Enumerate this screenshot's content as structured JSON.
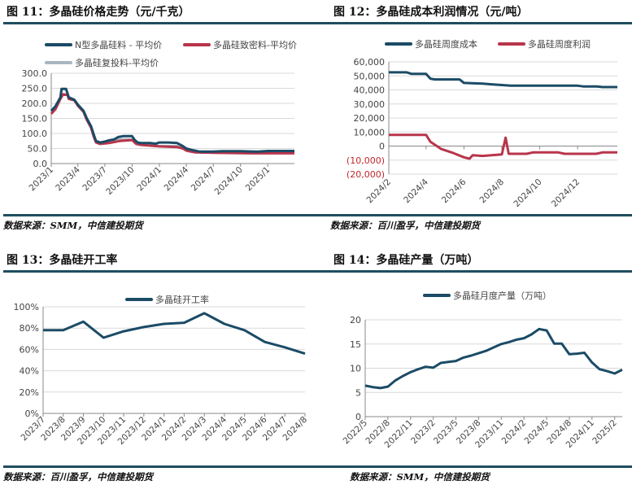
{
  "panels": [
    {
      "title": "图 11：多晶硅价格走势（元/千克）",
      "source": "数据来源：SMM，中信建投期货"
    },
    {
      "title": "图 12：多晶硅成本利润情况（元/吨）",
      "source": "数据来源：百川盈孚，中信建投期货"
    },
    {
      "title": "图 13：多晶硅开工率",
      "source": "数据来源：百川盈孚，中信建投期货"
    },
    {
      "title": "图 14：多晶硅产量（万吨）",
      "source": "数据来源：SMM，中信建投期货"
    }
  ],
  "colors": {
    "dark": "#1b4b66",
    "red": "#b8354b",
    "gray": "#a7b6c0",
    "rule": "#1f4e5f",
    "grid": "#d9d9d9"
  },
  "chart_data": [
    {
      "type": "line",
      "title": "",
      "x_type": "date",
      "xlim": [
        "2023-01-01",
        "2025-04-01"
      ],
      "ylim": [
        0,
        300
      ],
      "y_ticks": [
        0,
        50,
        100,
        150,
        200,
        250,
        300
      ],
      "y_tick_labels": [
        "0.0",
        "50.0",
        "100.0",
        "150.0",
        "200.0",
        "250.0",
        "300.0"
      ],
      "x_ticks": [
        "2023-01-01",
        "2023-04-01",
        "2023-07-01",
        "2023-10-01",
        "2024-01-01",
        "2024-04-01",
        "2024-07-01",
        "2024-10-01",
        "2025-01-01"
      ],
      "x_tick_labels": [
        "2023/1",
        "2023/4",
        "2023/7",
        "2023/10",
        "2024/1",
        "2024/4",
        "2024/7",
        "2024/10",
        "2025/1"
      ],
      "grid": true,
      "legend": "top",
      "series": [
        {
          "name": "N型多晶硅料 - 平均价",
          "color": "#1b4b66",
          "x": [
            "2023-01-01",
            "2023-01-15",
            "2023-02-01",
            "2023-02-05",
            "2023-02-20",
            "2023-03-01",
            "2023-03-20",
            "2023-04-01",
            "2023-04-20",
            "2023-05-01",
            "2023-05-15",
            "2023-05-25",
            "2023-06-01",
            "2023-06-15",
            "2023-07-01",
            "2023-07-15",
            "2023-08-01",
            "2023-08-15",
            "2023-09-01",
            "2023-10-01",
            "2023-10-10",
            "2023-10-20",
            "2023-11-01",
            "2023-12-01",
            "2023-12-20",
            "2024-01-01",
            "2024-02-01",
            "2024-03-01",
            "2024-03-20",
            "2024-04-01",
            "2024-04-20",
            "2024-05-15",
            "2024-06-01",
            "2024-07-01",
            "2024-08-01",
            "2024-10-01",
            "2024-11-15",
            "2024-12-01",
            "2025-01-01",
            "2025-04-01"
          ],
          "y": [
            175,
            190,
            220,
            248,
            248,
            220,
            212,
            195,
            175,
            150,
            125,
            95,
            75,
            70,
            73,
            77,
            80,
            88,
            91,
            91,
            78,
            70,
            68,
            68,
            66,
            70,
            70,
            68,
            58,
            50,
            45,
            40,
            40,
            40,
            41,
            41,
            40,
            40,
            42,
            42
          ]
        },
        {
          "name": "多晶硅致密料-平均价",
          "color": "#b8354b",
          "x": [
            "2023-01-01",
            "2023-01-15",
            "2023-02-01",
            "2023-02-10",
            "2023-02-25",
            "2023-03-01",
            "2023-03-20",
            "2023-04-01",
            "2023-04-20",
            "2023-05-01",
            "2023-05-15",
            "2023-05-25",
            "2023-06-01",
            "2023-06-15",
            "2023-07-15",
            "2023-08-20",
            "2023-10-01",
            "2023-10-15",
            "2023-11-01",
            "2024-01-01",
            "2024-03-01",
            "2024-03-20",
            "2024-04-01",
            "2024-05-01",
            "2024-07-01",
            "2024-11-01",
            "2025-04-01"
          ],
          "y": [
            165,
            180,
            215,
            230,
            228,
            215,
            210,
            192,
            172,
            145,
            120,
            88,
            70,
            65,
            68,
            75,
            78,
            65,
            62,
            57,
            55,
            50,
            43,
            37,
            36,
            34,
            34
          ]
        },
        {
          "name": "多晶硅复投料-平均价",
          "color": "#a7b6c0",
          "x": [
            "2023-01-01",
            "2023-01-15",
            "2023-02-01",
            "2023-02-05",
            "2023-02-20",
            "2023-03-01",
            "2023-03-20",
            "2023-04-01",
            "2023-04-20",
            "2023-05-01",
            "2023-05-15",
            "2023-05-25",
            "2023-06-01",
            "2023-06-15",
            "2023-07-01",
            "2023-07-15",
            "2023-08-01",
            "2023-08-20",
            "2023-10-01",
            "2023-10-15",
            "2023-11-01",
            "2023-12-01",
            "2024-01-01",
            "2024-03-01",
            "2024-03-20",
            "2024-04-01",
            "2024-04-20",
            "2024-05-01",
            "2025-04-01"
          ],
          "y": [
            175,
            190,
            220,
            248,
            248,
            220,
            212,
            195,
            175,
            150,
            125,
            95,
            75,
            68,
            68,
            72,
            76,
            80,
            80,
            68,
            63,
            62,
            58,
            58,
            52,
            45,
            42,
            38,
            38
          ]
        }
      ]
    },
    {
      "type": "line",
      "title": "",
      "x_type": "date",
      "xlim": [
        "2024-02-01",
        "2025-02-03"
      ],
      "ylim": [
        -20000,
        60000
      ],
      "y_ticks": [
        -20000,
        -10000,
        0,
        10000,
        20000,
        30000,
        40000,
        50000,
        60000
      ],
      "y_tick_labels": [
        "(20,000)",
        "(10,000)",
        "0",
        "10,000",
        "20,000",
        "30,000",
        "40,000",
        "50,000",
        "60,000"
      ],
      "x_ticks": [
        "2024-02-01",
        "2024-04-01",
        "2024-06-01",
        "2024-08-01",
        "2024-10-01",
        "2024-12-01"
      ],
      "x_tick_labels": [
        "2024/2",
        "2024/4",
        "2024/6",
        "2024/8",
        "2024/10",
        "2024/12"
      ],
      "grid": true,
      "legend": "top",
      "series": [
        {
          "name": "多晶硅周度成本",
          "color": "#1b4b66",
          "x": [
            "2024-02-01",
            "2024-03-01",
            "2024-03-08",
            "2024-04-01",
            "2024-04-08",
            "2024-04-15",
            "2024-05-25",
            "2024-06-01",
            "2024-07-01",
            "2024-07-15",
            "2024-08-01",
            "2024-08-15",
            "2024-12-01",
            "2024-12-10",
            "2025-01-01",
            "2025-01-10",
            "2025-02-03"
          ],
          "y": [
            52500,
            52500,
            51500,
            51500,
            48000,
            47500,
            47500,
            45000,
            44500,
            44000,
            43500,
            43000,
            43000,
            42500,
            42500,
            42000,
            42000
          ]
        },
        {
          "name": "多晶硅周度利润",
          "color": "#b8354b",
          "x": [
            "2024-02-01",
            "2024-03-01",
            "2024-04-01",
            "2024-04-08",
            "2024-04-25",
            "2024-05-15",
            "2024-06-01",
            "2024-06-10",
            "2024-06-15",
            "2024-07-01",
            "2024-08-01",
            "2024-08-07",
            "2024-08-12",
            "2024-09-10",
            "2024-09-20",
            "2024-10-31",
            "2024-11-10",
            "2024-12-31",
            "2025-01-10",
            "2025-02-03"
          ],
          "y": [
            8000,
            8000,
            8000,
            3000,
            -2000,
            -5000,
            -8000,
            -9000,
            -6500,
            -7000,
            -6000,
            6000,
            -5500,
            -5500,
            -4500,
            -4500,
            -5500,
            -5500,
            -4500,
            -4500
          ]
        }
      ]
    },
    {
      "type": "line",
      "title": "",
      "x_type": "category",
      "categories": [
        "2023/7",
        "2023/8",
        "2023/9",
        "2023/10",
        "2023/11",
        "2023/12",
        "2024/1",
        "2024/2",
        "2024/3",
        "2024/4",
        "2024/5",
        "2024/6",
        "2024/7",
        "2024/8"
      ],
      "ylim": [
        0,
        1
      ],
      "y_ticks": [
        0,
        0.2,
        0.4,
        0.6,
        0.8,
        1.0
      ],
      "y_tick_labels": [
        "0%",
        "20%",
        "40%",
        "60%",
        "80%",
        "100%"
      ],
      "grid": true,
      "legend": "top",
      "series": [
        {
          "name": "多晶硅开工率",
          "color": "#1b4b66",
          "values": [
            0.78,
            0.78,
            0.86,
            0.71,
            0.77,
            0.81,
            0.84,
            0.85,
            0.94,
            0.84,
            0.78,
            0.67,
            0.62,
            0.56
          ]
        }
      ]
    },
    {
      "type": "line",
      "title": "",
      "x_type": "category",
      "categories": [
        "2022/5",
        "2022/6",
        "2022/7",
        "2022/8",
        "2022/9",
        "2022/10",
        "2022/11",
        "2022/12",
        "2023/1",
        "2023/2",
        "2023/3",
        "2023/4",
        "2023/5",
        "2023/6",
        "2023/7",
        "2023/8",
        "2023/9",
        "2023/10",
        "2023/11",
        "2023/12",
        "2024/1",
        "2024/2",
        "2024/3",
        "2024/4",
        "2024/5",
        "2024/6",
        "2024/7",
        "2024/8",
        "2024/9",
        "2024/10",
        "2024/11",
        "2024/12",
        "2025/1",
        "2025/2",
        "2025/3"
      ],
      "x_tick_labels": [
        "2022/5",
        "2022/8",
        "2022/11",
        "2023/2",
        "2023/5",
        "2023/8",
        "2023/11",
        "2024/2",
        "2024/5",
        "2024/8",
        "2024/11",
        "2025/2"
      ],
      "ylim": [
        0,
        20
      ],
      "y_ticks": [
        0,
        5,
        10,
        15,
        20
      ],
      "y_tick_labels": [
        "0",
        "5",
        "10",
        "15",
        "20"
      ],
      "grid": true,
      "legend": "top",
      "series": [
        {
          "name": "多晶硅月度产量（万吨）",
          "color": "#1b4b66",
          "values": [
            6.4,
            6.1,
            5.9,
            6.2,
            7.5,
            8.4,
            9.2,
            9.8,
            10.3,
            10.1,
            11.1,
            11.3,
            11.5,
            12.2,
            12.6,
            13.1,
            13.6,
            14.3,
            15.0,
            15.4,
            15.9,
            16.2,
            17.0,
            18.1,
            17.8,
            15.1,
            15.1,
            12.9,
            13.0,
            13.2,
            11.2,
            9.8,
            9.4,
            8.9,
            9.7
          ]
        }
      ]
    }
  ]
}
